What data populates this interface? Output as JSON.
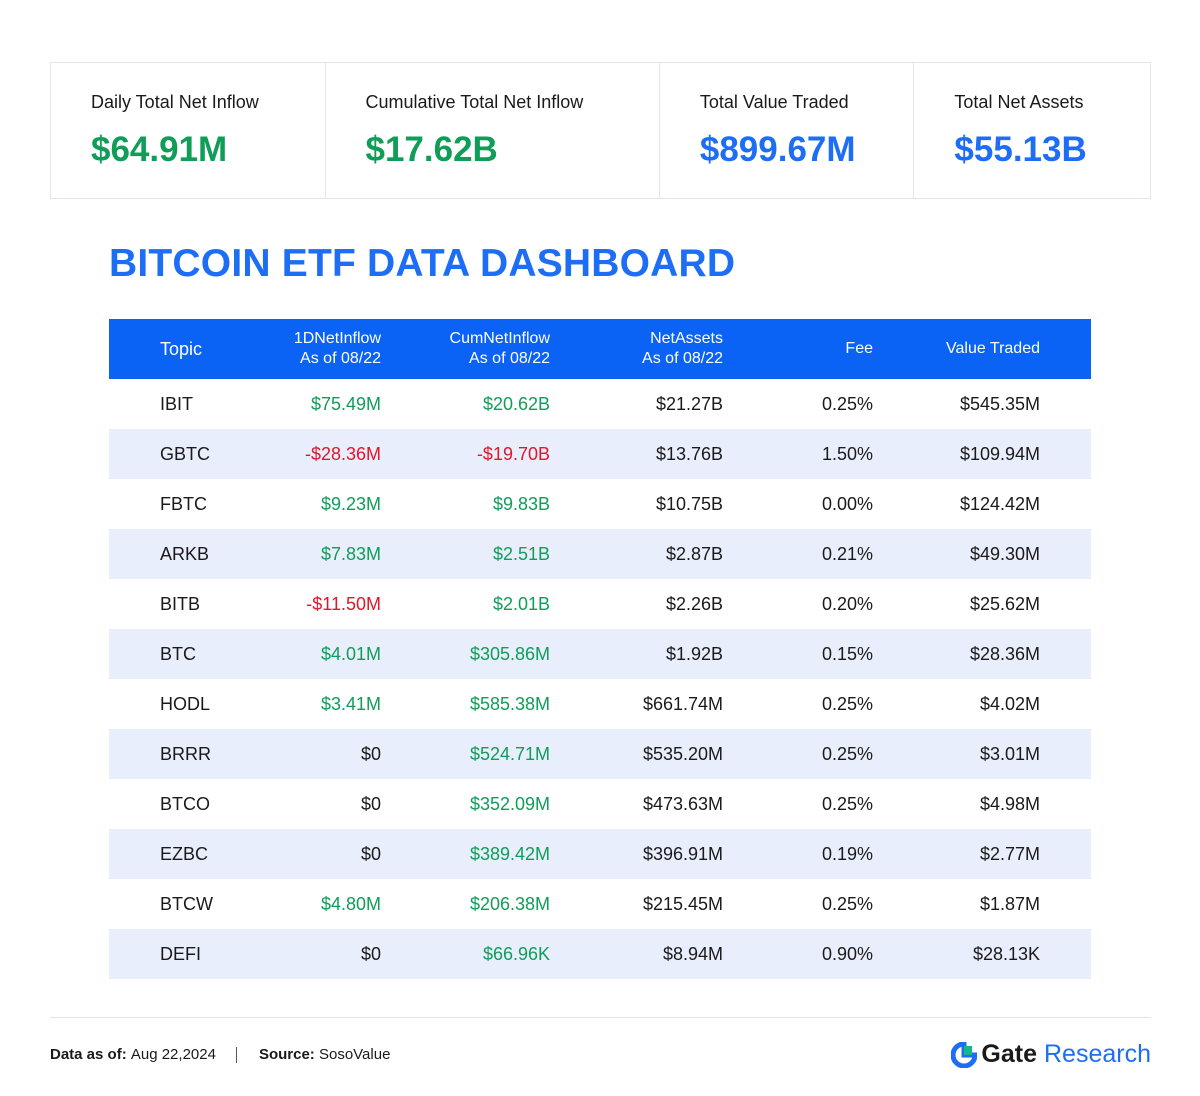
{
  "stats": [
    {
      "label": "Daily Total Net Inflow",
      "value": "$64.91M",
      "color": "green"
    },
    {
      "label": "Cumulative Total Net Inflow",
      "value": "$17.62B",
      "color": "green"
    },
    {
      "label": "Total Value Traded",
      "value": "$899.67M",
      "color": "blue"
    },
    {
      "label": "Total Net Assets",
      "value": "$55.13B",
      "color": "blue"
    }
  ],
  "title": "BITCOIN ETF DATA DASHBOARD",
  "colors": {
    "accent": "#1e6ef5",
    "header_bg": "#0a63f5",
    "positive": "#0f9d58",
    "negative": "#e0162b",
    "row_alt": "#e8eefb"
  },
  "chart_data": {
    "type": "table",
    "columns": [
      {
        "line1": "Topic",
        "line2": ""
      },
      {
        "line1": "1DNetInflow",
        "line2": "As of 08/22"
      },
      {
        "line1": "CumNetInflow",
        "line2": "As of 08/22"
      },
      {
        "line1": "NetAssets",
        "line2": "As of 08/22"
      },
      {
        "line1": "Fee",
        "line2": ""
      },
      {
        "line1": "Value Traded",
        "line2": ""
      }
    ],
    "rows": [
      {
        "topic": "IBIT",
        "d1": "$75.49M",
        "d1_sign": "pos",
        "cum": "$20.62B",
        "cum_sign": "pos",
        "assets": "$21.27B",
        "fee": "0.25%",
        "traded": "$545.35M"
      },
      {
        "topic": "GBTC",
        "d1": "-$28.36M",
        "d1_sign": "neg",
        "cum": "-$19.70B",
        "cum_sign": "neg",
        "assets": "$13.76B",
        "fee": "1.50%",
        "traded": "$109.94M"
      },
      {
        "topic": "FBTC",
        "d1": "$9.23M",
        "d1_sign": "pos",
        "cum": "$9.83B",
        "cum_sign": "pos",
        "assets": "$10.75B",
        "fee": "0.00%",
        "traded": "$124.42M"
      },
      {
        "topic": "ARKB",
        "d1": "$7.83M",
        "d1_sign": "pos",
        "cum": "$2.51B",
        "cum_sign": "pos",
        "assets": "$2.87B",
        "fee": "0.21%",
        "traded": "$49.30M"
      },
      {
        "topic": "BITB",
        "d1": "-$11.50M",
        "d1_sign": "neg",
        "cum": "$2.01B",
        "cum_sign": "pos",
        "assets": "$2.26B",
        "fee": "0.20%",
        "traded": "$25.62M"
      },
      {
        "topic": "BTC",
        "d1": "$4.01M",
        "d1_sign": "pos",
        "cum": "$305.86M",
        "cum_sign": "pos",
        "assets": "$1.92B",
        "fee": "0.15%",
        "traded": "$28.36M"
      },
      {
        "topic": "HODL",
        "d1": "$3.41M",
        "d1_sign": "pos",
        "cum": "$585.38M",
        "cum_sign": "pos",
        "assets": "$661.74M",
        "fee": "0.25%",
        "traded": "$4.02M"
      },
      {
        "topic": "BRRR",
        "d1": "$0",
        "d1_sign": "zero",
        "cum": "$524.71M",
        "cum_sign": "pos",
        "assets": "$535.20M",
        "fee": "0.25%",
        "traded": "$3.01M"
      },
      {
        "topic": "BTCO",
        "d1": "$0",
        "d1_sign": "zero",
        "cum": "$352.09M",
        "cum_sign": "pos",
        "assets": "$473.63M",
        "fee": "0.25%",
        "traded": "$4.98M"
      },
      {
        "topic": "EZBC",
        "d1": "$0",
        "d1_sign": "zero",
        "cum": "$389.42M",
        "cum_sign": "pos",
        "assets": "$396.91M",
        "fee": "0.19%",
        "traded": "$2.77M"
      },
      {
        "topic": "BTCW",
        "d1": "$4.80M",
        "d1_sign": "pos",
        "cum": "$206.38M",
        "cum_sign": "pos",
        "assets": "$215.45M",
        "fee": "0.25%",
        "traded": "$1.87M"
      },
      {
        "topic": "DEFI",
        "d1": "$0",
        "d1_sign": "zero",
        "cum": "$66.96K",
        "cum_sign": "pos",
        "assets": "$8.94M",
        "fee": "0.90%",
        "traded": "$28.13K"
      }
    ]
  },
  "footer": {
    "date_label": "Data as of:",
    "date_value": "Aug 22,2024",
    "source_label": "Source:",
    "source_value": "SosoValue"
  },
  "brand": {
    "gate": "Gate",
    "research": "Research",
    "logo_icon": "gate-logo-icon"
  }
}
